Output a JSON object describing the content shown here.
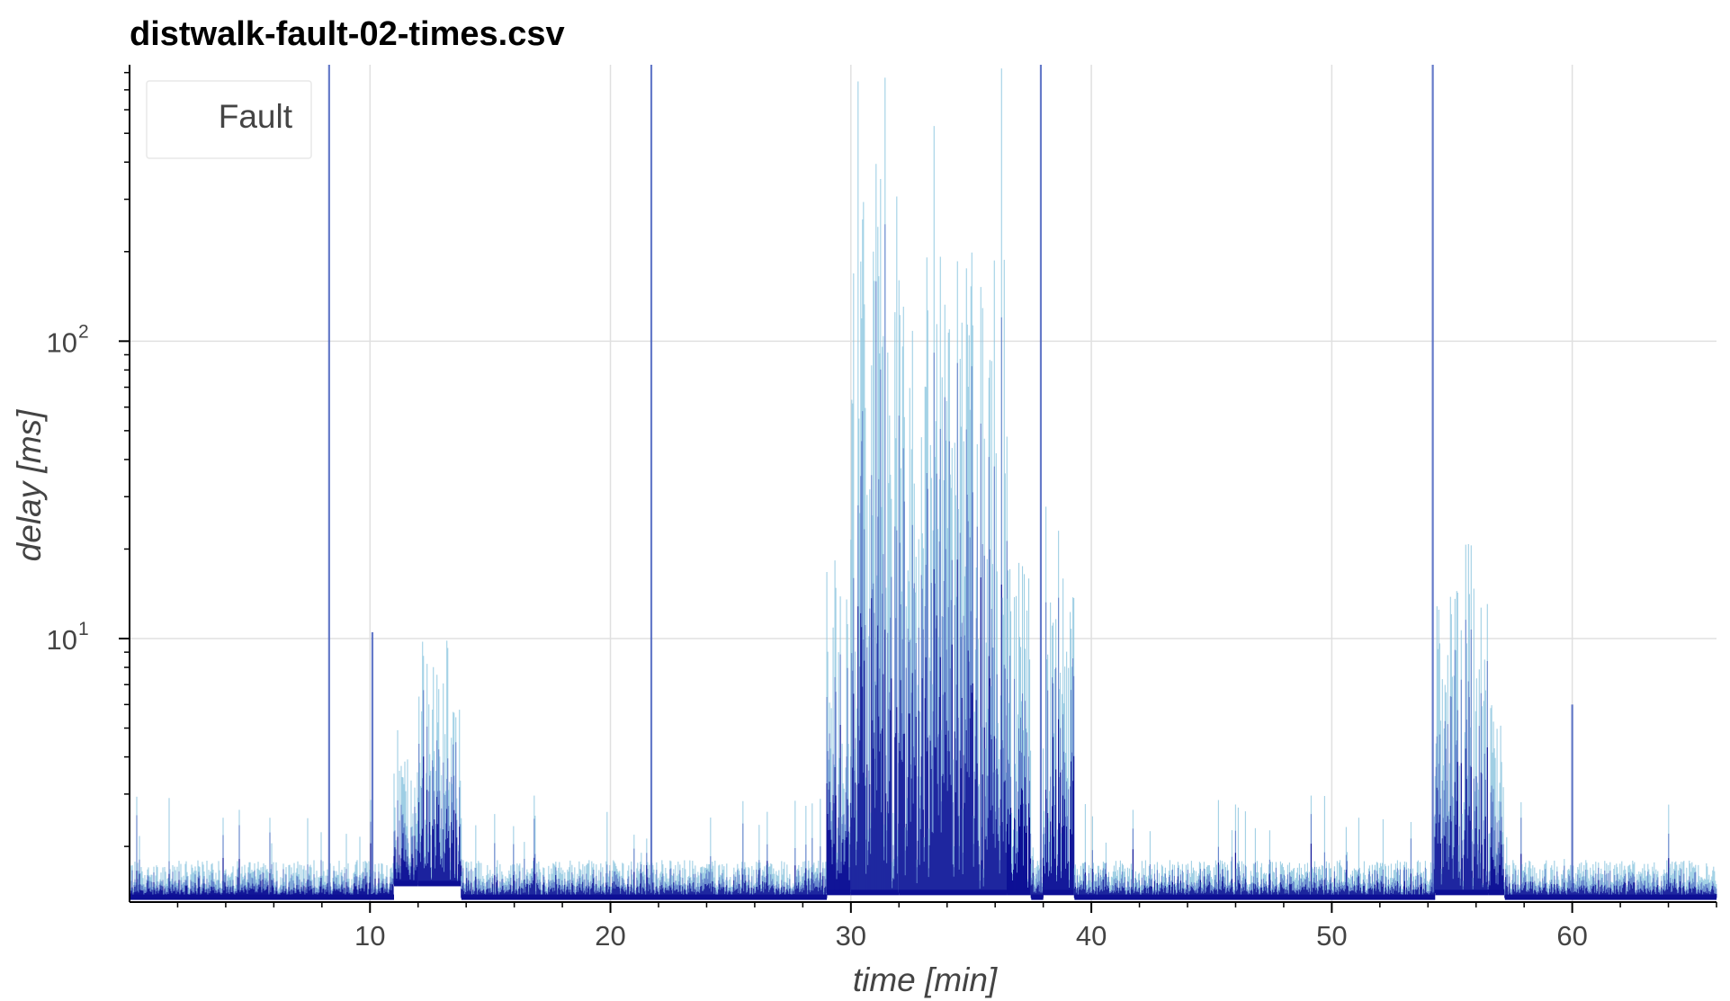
{
  "chart_data": {
    "type": "scatter",
    "title": "distwalk-fault-02-times.csv",
    "xlabel": "time [min]",
    "ylabel": "delay [ms]",
    "xlim": [
      0,
      66
    ],
    "ylim": [
      1.3,
      850
    ],
    "yscale": "log",
    "grid": true,
    "x_ticks": [
      10,
      20,
      30,
      40,
      50,
      60
    ],
    "x_tick_labels": [
      "10",
      "20",
      "30",
      "40",
      "50",
      "60"
    ],
    "y_ticks": [
      10,
      100
    ],
    "y_tick_labels": [
      {
        "base": "10",
        "exp": "1"
      },
      {
        "base": "10",
        "exp": "2"
      }
    ],
    "legend": {
      "entries": [
        "Fault"
      ],
      "placement": "top-left"
    },
    "colors": {
      "points_light": "#8ec7df",
      "points_mid": "#4a63c0",
      "points_dark": "#0d0f95",
      "grid": "#e0e0e0",
      "axis": "#000000"
    },
    "series": [
      {
        "segments": [
          {
            "x_start": 0,
            "x_end": 11,
            "baseline": 1.35,
            "p90": 1.8,
            "max": 3.0
          },
          {
            "x_start": 11,
            "x_end": 12,
            "baseline": 1.5,
            "p90": 4.0,
            "max": 6.0
          },
          {
            "x_start": 12,
            "x_end": 13.8,
            "baseline": 1.5,
            "p90": 10.0,
            "max": 15.0
          },
          {
            "x_start": 13.8,
            "x_end": 29,
            "baseline": 1.35,
            "p90": 1.8,
            "max": 3.0
          },
          {
            "x_start": 29,
            "x_end": 30,
            "baseline": 1.4,
            "p90": 20.0,
            "max": 30.0
          },
          {
            "x_start": 30,
            "x_end": 32,
            "baseline": 1.4,
            "p90": 400.0,
            "max": 850.0
          },
          {
            "x_start": 32,
            "x_end": 36.5,
            "baseline": 1.4,
            "p90": 200.0,
            "max": 850.0
          },
          {
            "x_start": 36.5,
            "x_end": 37.5,
            "baseline": 1.4,
            "p90": 30.0,
            "max": 400.0
          },
          {
            "x_start": 37.5,
            "x_end": 38,
            "baseline": 1.35,
            "p90": 2.0,
            "max": 3.0
          },
          {
            "x_start": 38,
            "x_end": 39.3,
            "baseline": 1.4,
            "p90": 20.0,
            "max": 30.0
          },
          {
            "x_start": 39.3,
            "x_end": 54.3,
            "baseline": 1.35,
            "p90": 1.8,
            "max": 3.0
          },
          {
            "x_start": 54.3,
            "x_end": 56.5,
            "baseline": 1.4,
            "p90": 15.0,
            "max": 25.0
          },
          {
            "x_start": 56.5,
            "x_end": 57.2,
            "baseline": 1.4,
            "p90": 6.0,
            "max": 8.0
          },
          {
            "x_start": 57.2,
            "x_end": 66,
            "baseline": 1.35,
            "p90": 1.8,
            "max": 3.0
          }
        ],
        "spikes": [
          {
            "x": 8.3,
            "max": 850.0
          },
          {
            "x": 21.7,
            "max": 850.0
          },
          {
            "x": 37.9,
            "max": 850.0
          },
          {
            "x": 54.2,
            "max": 850.0
          },
          {
            "x": 10.1,
            "max": 10.5
          },
          {
            "x": 60.0,
            "max": 6.0
          }
        ]
      }
    ]
  }
}
